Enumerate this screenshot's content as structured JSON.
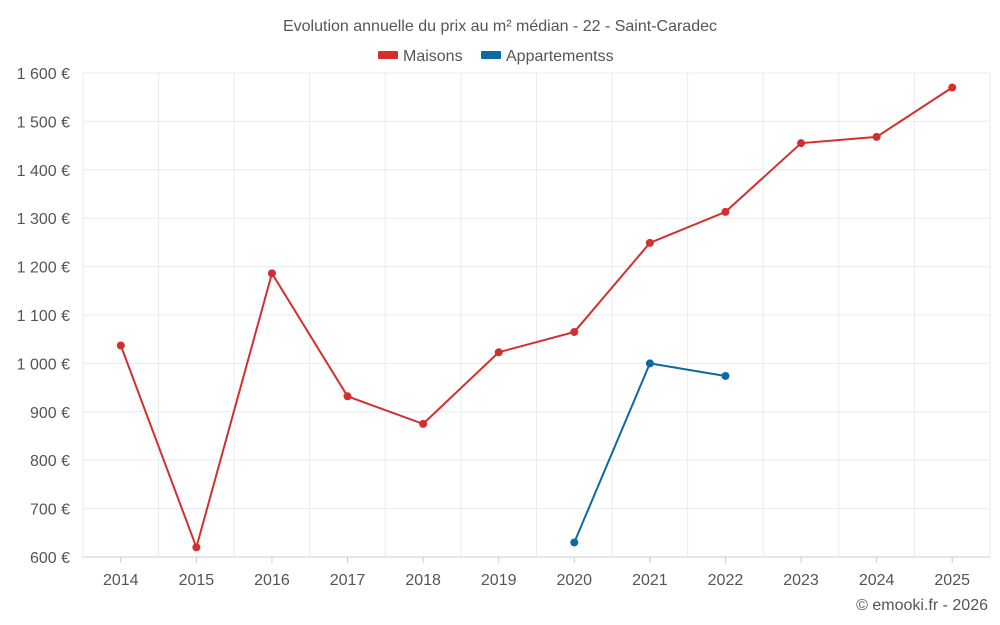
{
  "chart_data": {
    "type": "line",
    "title": "Evolution annuelle du prix au m² médian - 22 - Saint-Caradec",
    "categories": [
      "2014",
      "2015",
      "2016",
      "2017",
      "2018",
      "2019",
      "2020",
      "2021",
      "2022",
      "2023",
      "2024",
      "2025"
    ],
    "series": [
      {
        "name": "Maisons",
        "color": "#d32f2f",
        "values": [
          1037,
          620,
          1186,
          932,
          875,
          1023,
          1065,
          1249,
          1313,
          1455,
          1468,
          1570
        ]
      },
      {
        "name": "Appartementss",
        "color": "#0d6aa0",
        "values": [
          null,
          null,
          null,
          null,
          null,
          null,
          630,
          1000,
          974,
          null,
          null,
          null
        ]
      }
    ],
    "ylim": [
      600,
      1600
    ],
    "yticks": [
      600,
      700,
      800,
      900,
      1000,
      1100,
      1200,
      1300,
      1400,
      1500,
      1600
    ],
    "ytick_labels": [
      "600 €",
      "700 €",
      "800 €",
      "900 €",
      "1 000 €",
      "1 100 €",
      "1 200 €",
      "1 300 €",
      "1 400 €",
      "1 500 €",
      "1 600 €"
    ],
    "xlabel": "",
    "ylabel": "",
    "grid": true,
    "legend_position": "top-center"
  },
  "credit": "© emooki.fr - 2026"
}
